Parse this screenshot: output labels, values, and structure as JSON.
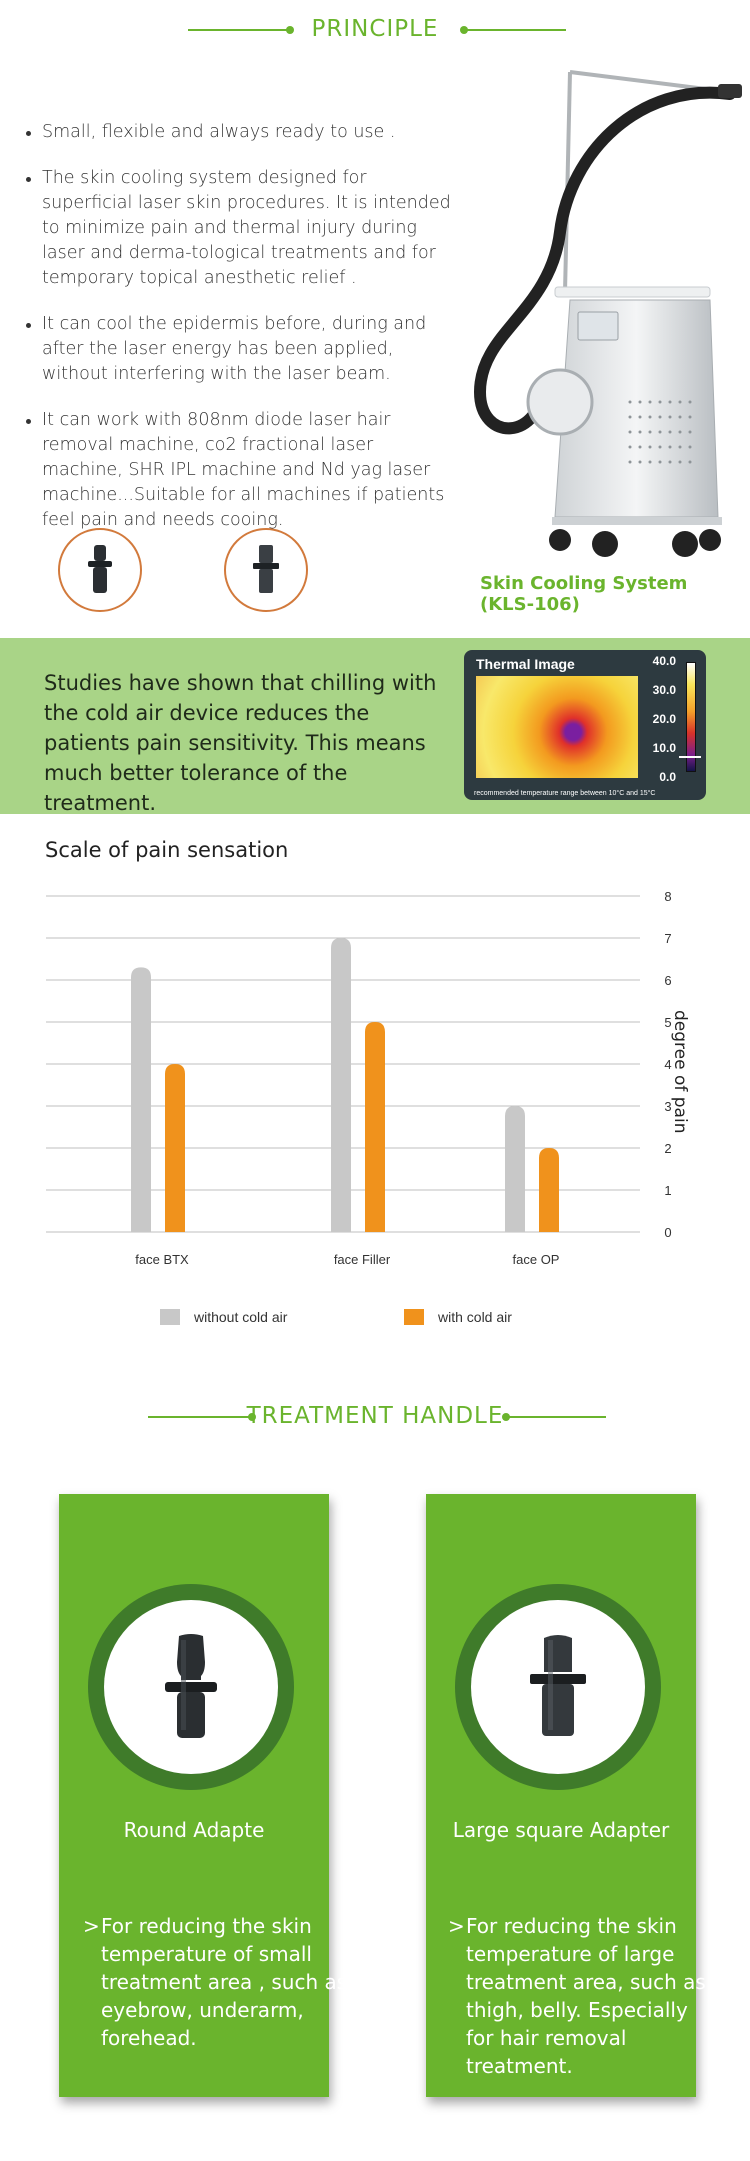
{
  "principle": {
    "title": "PRINCIPLE",
    "bullets": [
      "Small, flexible and always ready to use .",
      "The skin cooling system designed for superficial laser skin procedures. It is intended to minimize pain and thermal injury during laser and derma-tological treatments and for temporary topical anesthetic relief .",
      "It can cool the epidermis before, during and after the laser energy has been applied, without interfering with the laser beam.",
      "It can work with 808nm diode laser hair removal machine, co2 fractional laser machine, SHR IPL machine and Nd yag laser machine...Suitable for all machines if patients feel pain and needs cooing."
    ],
    "product_caption": "Skin Cooling System (KLS-106)"
  },
  "study": {
    "text": "Studies  have shown that chilling with the cold air device reduces the patients pain sensitivity. This means much better tolerance of the treatment.",
    "thermal_title": "Thermal Image",
    "thermal_ticks": [
      "40.0",
      "30.0",
      "20.0",
      "10.0",
      "0.0"
    ],
    "thermal_footer": "recommended temperature range between 10°C and 15°C"
  },
  "chart_data": {
    "type": "bar",
    "title": "Scale of pain sensation",
    "categories": [
      "face BTX",
      "face Filler",
      "face OP"
    ],
    "series": [
      {
        "name": "without cold air",
        "values": [
          6.3,
          7.0,
          3.0
        ],
        "color": "#c8c8c8"
      },
      {
        "name": "with cold air",
        "values": [
          4.0,
          5.0,
          2.0
        ],
        "color": "#f0921c"
      }
    ],
    "ylabel": "degree of pain",
    "ylim": [
      0,
      8
    ],
    "yticks": [
      "0",
      "1",
      "2",
      "3",
      "4",
      "5",
      "6",
      "7",
      "8"
    ],
    "grid": true,
    "legend": "bottom"
  },
  "treatment": {
    "title": "TREATMENT HANDLE",
    "cards": [
      {
        "title": "Round Adapte",
        "arrow": ">",
        "desc": "For reducing the skin temperature of small treatment area , such as eyebrow, underarm, forehead."
      },
      {
        "title": "Large square Adapter",
        "arrow": ">",
        "desc": "For reducing the skin temperature of large treatment area, such as thigh, belly. Especially for hair removal treatment."
      }
    ]
  },
  "colors": {
    "accent_green": "#6ab42d",
    "band_green": "#a9d487",
    "orange": "#f0921c",
    "gray": "#c8c8c8"
  }
}
